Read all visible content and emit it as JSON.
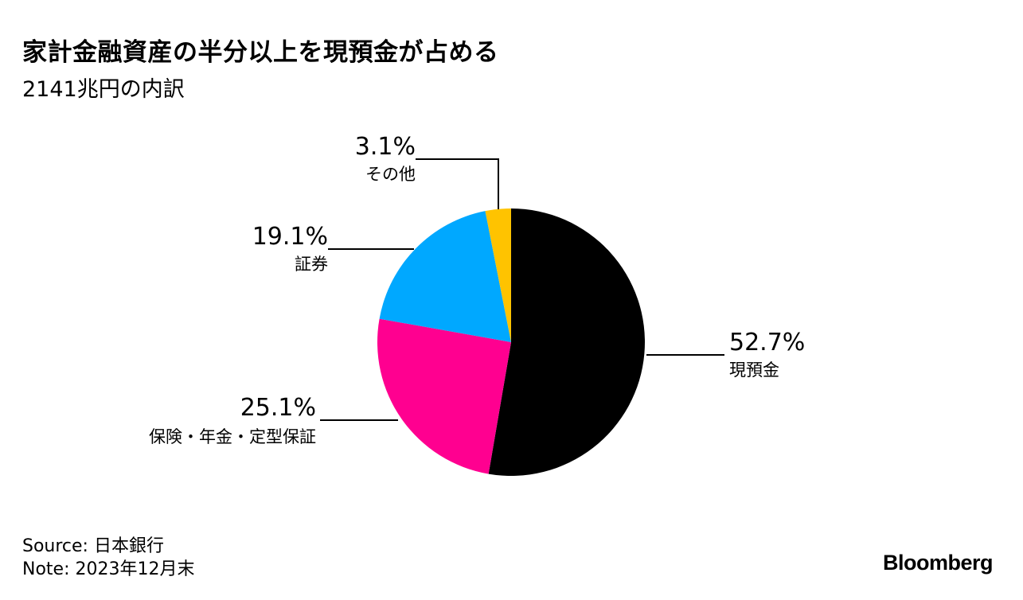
{
  "title": "家計金融資産の半分以上を現預金が占める",
  "subtitle": "2141兆円の内訳",
  "footer": {
    "source": "Source: 日本銀行",
    "note": "Note: 2023年12月末"
  },
  "brand": "Bloomberg",
  "chart_data": {
    "type": "pie",
    "slices": [
      {
        "label": "現預金",
        "value": 52.7,
        "value_label": "52.7%",
        "color": "#000000"
      },
      {
        "label": "保険・年金・定型保証",
        "value": 25.1,
        "value_label": "25.1%",
        "color": "#ff0090"
      },
      {
        "label": "証券",
        "value": 19.1,
        "value_label": "19.1%",
        "color": "#00a8ff"
      },
      {
        "label": "その他",
        "value": 3.1,
        "value_label": "3.1%",
        "color": "#ffc300"
      }
    ],
    "start": "12 o'clock",
    "direction": "clockwise"
  }
}
